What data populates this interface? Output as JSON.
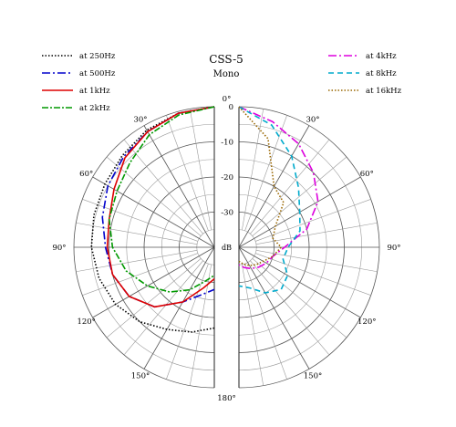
{
  "chart_data": {
    "type": "line",
    "title": "CSS-5",
    "subtitle": "Mono",
    "radial_label": "dB",
    "radial_ticks": [
      {
        "value": 0,
        "label": "0"
      },
      {
        "value": -10,
        "label": "-10"
      },
      {
        "value": -20,
        "label": "-20"
      },
      {
        "value": -30,
        "label": "-30"
      }
    ],
    "radial_range": [
      -40,
      0
    ],
    "angle_labels": [
      {
        "angle": 0,
        "label": "0°"
      },
      {
        "angle": 30,
        "label": "30°"
      },
      {
        "angle": 60,
        "label": "60°"
      },
      {
        "angle": 90,
        "label": "90°"
      },
      {
        "angle": 120,
        "label": "120°"
      },
      {
        "angle": 150,
        "label": "150°"
      },
      {
        "angle": 180,
        "label": "180°"
      }
    ],
    "grid": true,
    "angle_unit": "degrees",
    "series": [
      {
        "name": "at 250Hz",
        "side": "left",
        "color": "#000000",
        "dash": "1.5,2",
        "angles": [
          0,
          15,
          30,
          45,
          60,
          75,
          90,
          105,
          120,
          135,
          150,
          165,
          180
        ],
        "values": [
          0,
          -0.5,
          -1.5,
          -3,
          -4,
          -4.5,
          -5,
          -6,
          -7.5,
          -10,
          -13,
          -15,
          -17
        ]
      },
      {
        "name": "at 500Hz",
        "side": "left",
        "color": "#0000cc",
        "dash": "9,3,2,3",
        "angles": [
          0,
          15,
          30,
          45,
          60,
          75,
          90,
          105,
          120,
          135,
          150,
          165,
          180
        ],
        "values": [
          0,
          -0.5,
          -2,
          -3.5,
          -5,
          -7,
          -9,
          -10,
          -12,
          -16,
          -22,
          -26,
          -28
        ]
      },
      {
        "name": "at 1kHz",
        "side": "left",
        "color": "#dd0000",
        "dash": "",
        "angles": [
          0,
          15,
          30,
          45,
          60,
          75,
          90,
          105,
          120,
          135,
          150,
          165,
          180
        ],
        "values": [
          0,
          -0.5,
          -2,
          -4,
          -7,
          -9,
          -9.5,
          -10,
          -12,
          -16,
          -22,
          -28,
          -31
        ]
      },
      {
        "name": "at 2kHz",
        "side": "left",
        "color": "#009900",
        "dash": "7,2,2,2",
        "angles": [
          0,
          15,
          30,
          45,
          60,
          75,
          90,
          105,
          120,
          135,
          150,
          165,
          180
        ],
        "values": [
          0,
          -1,
          -3,
          -6,
          -8,
          -9,
          -11,
          -14,
          -18,
          -22,
          -26,
          -30,
          -32
        ]
      },
      {
        "name": "at 4kHz",
        "side": "right",
        "color": "#dd00dd",
        "dash": "9,3,2,3",
        "angles": [
          0,
          15,
          30,
          45,
          60,
          75,
          90,
          105,
          120,
          135,
          150,
          165,
          180
        ],
        "values": [
          0,
          -3,
          -6,
          -10,
          -14,
          -20,
          -27,
          -30,
          -31,
          -32,
          -33,
          -34,
          -35
        ]
      },
      {
        "name": "at 8kHz",
        "side": "right",
        "color": "#00aacc",
        "dash": "6,4",
        "angles": [
          0,
          15,
          30,
          45,
          60,
          75,
          90,
          105,
          120,
          135,
          150,
          165,
          180
        ],
        "values": [
          0,
          -4,
          -10,
          -16,
          -20,
          -22,
          -26,
          -27,
          -24,
          -23,
          -25,
          -28,
          -29
        ]
      },
      {
        "name": "at 16kHz",
        "side": "right",
        "color": "#996600",
        "dash": "1.5,2",
        "angles": [
          0,
          15,
          30,
          45,
          60,
          75,
          90,
          105,
          120,
          135,
          150,
          165,
          180
        ],
        "values": [
          0,
          -8,
          -20,
          -22,
          -28,
          -30,
          -28,
          -30,
          -32,
          -33,
          -34,
          -35,
          -36
        ]
      }
    ],
    "legend": [
      {
        "placement": "top-left",
        "items": [
          "at 250Hz",
          "at 500Hz",
          "at 1kHz",
          "at 2kHz"
        ]
      },
      {
        "placement": "top-right",
        "items": [
          "at 4kHz",
          "at 8kHz",
          "at 16kHz"
        ]
      }
    ]
  }
}
